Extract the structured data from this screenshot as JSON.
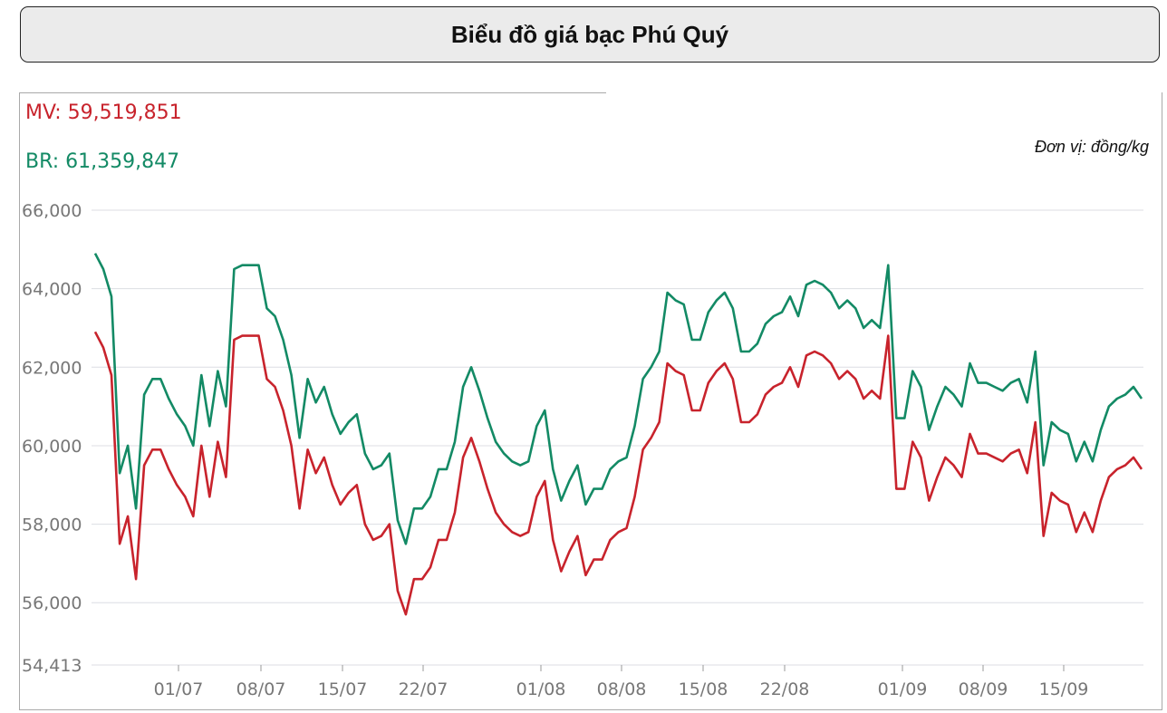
{
  "header": {
    "title": "Biểu đồ giá bạc Phú Quý"
  },
  "readouts": {
    "mv_label": "MV:",
    "mv_value": "59,519,851",
    "br_label": "BR:",
    "br_value": "61,359,847"
  },
  "unit_label": "Đơn vị: đồng/kg",
  "chart_data": {
    "type": "line",
    "x_tick_labels": [
      "01/07",
      "08/07",
      "15/07",
      "22/07",
      "01/08",
      "08/08",
      "15/08",
      "22/08",
      "01/09",
      "08/09",
      "15/09"
    ],
    "y_tick_labels": [
      "54,413",
      "56,000",
      "58,000",
      "60,000",
      "62,000",
      "64,000",
      "66,000"
    ],
    "ylim": [
      54413,
      66000
    ],
    "grid": true,
    "series": [
      {
        "name": "MV",
        "color": "#c8232c",
        "values": [
          62900,
          62500,
          61800,
          57500,
          58200,
          56600,
          59500,
          59900,
          59900,
          59400,
          59000,
          58700,
          58200,
          60000,
          58700,
          60100,
          59200,
          62700,
          62800,
          62800,
          62800,
          61700,
          61500,
          60900,
          60000,
          58400,
          59900,
          59300,
          59700,
          59000,
          58500,
          58800,
          59000,
          58000,
          57600,
          57700,
          58000,
          56300,
          55700,
          56600,
          56600,
          56900,
          57600,
          57600,
          58300,
          59700,
          60200,
          59600,
          58900,
          58300,
          58000,
          57800,
          57700,
          57800,
          58700,
          59100,
          57600,
          56800,
          57300,
          57700,
          56700,
          57100,
          57100,
          57600,
          57800,
          57900,
          58700,
          59900,
          60200,
          60600,
          62100,
          61900,
          61800,
          60900,
          60900,
          61600,
          61900,
          62100,
          61700,
          60600,
          60600,
          60800,
          61300,
          61500,
          61600,
          62000,
          61500,
          62300,
          62400,
          62300,
          62100,
          61700,
          61900,
          61700,
          61200,
          61400,
          61200,
          62800,
          58900,
          58900,
          60100,
          59700,
          58600,
          59200,
          59700,
          59500,
          59200,
          60300,
          59800,
          59800,
          59700,
          59600,
          59800,
          59900,
          59300,
          60600,
          57700,
          58800,
          58600,
          58500,
          57800,
          58300,
          57800,
          58600,
          59200,
          59400,
          59500,
          59700,
          59400
        ]
      },
      {
        "name": "BR",
        "color": "#138a65",
        "values": [
          64900,
          64500,
          63800,
          59300,
          60000,
          58400,
          61300,
          61700,
          61700,
          61200,
          60800,
          60500,
          60000,
          61800,
          60500,
          61900,
          61000,
          64500,
          64600,
          64600,
          64600,
          63500,
          63300,
          62700,
          61800,
          60200,
          61700,
          61100,
          61500,
          60800,
          60300,
          60600,
          60800,
          59800,
          59400,
          59500,
          59800,
          58100,
          57500,
          58400,
          58400,
          58700,
          59400,
          59400,
          60100,
          61500,
          62000,
          61400,
          60700,
          60100,
          59800,
          59600,
          59500,
          59600,
          60500,
          60900,
          59400,
          58600,
          59100,
          59500,
          58500,
          58900,
          58900,
          59400,
          59600,
          59700,
          60500,
          61700,
          62000,
          62400,
          63900,
          63700,
          63600,
          62700,
          62700,
          63400,
          63700,
          63900,
          63500,
          62400,
          62400,
          62600,
          63100,
          63300,
          63400,
          63800,
          63300,
          64100,
          64200,
          64100,
          63900,
          63500,
          63700,
          63500,
          63000,
          63200,
          63000,
          64600,
          60700,
          60700,
          61900,
          61500,
          60400,
          61000,
          61500,
          61300,
          61000,
          62100,
          61600,
          61600,
          61500,
          61400,
          61600,
          61700,
          61100,
          62400,
          59500,
          60600,
          60400,
          60300,
          59600,
          60100,
          59600,
          60400,
          61000,
          61200,
          61300,
          61500,
          61200
        ]
      }
    ]
  }
}
